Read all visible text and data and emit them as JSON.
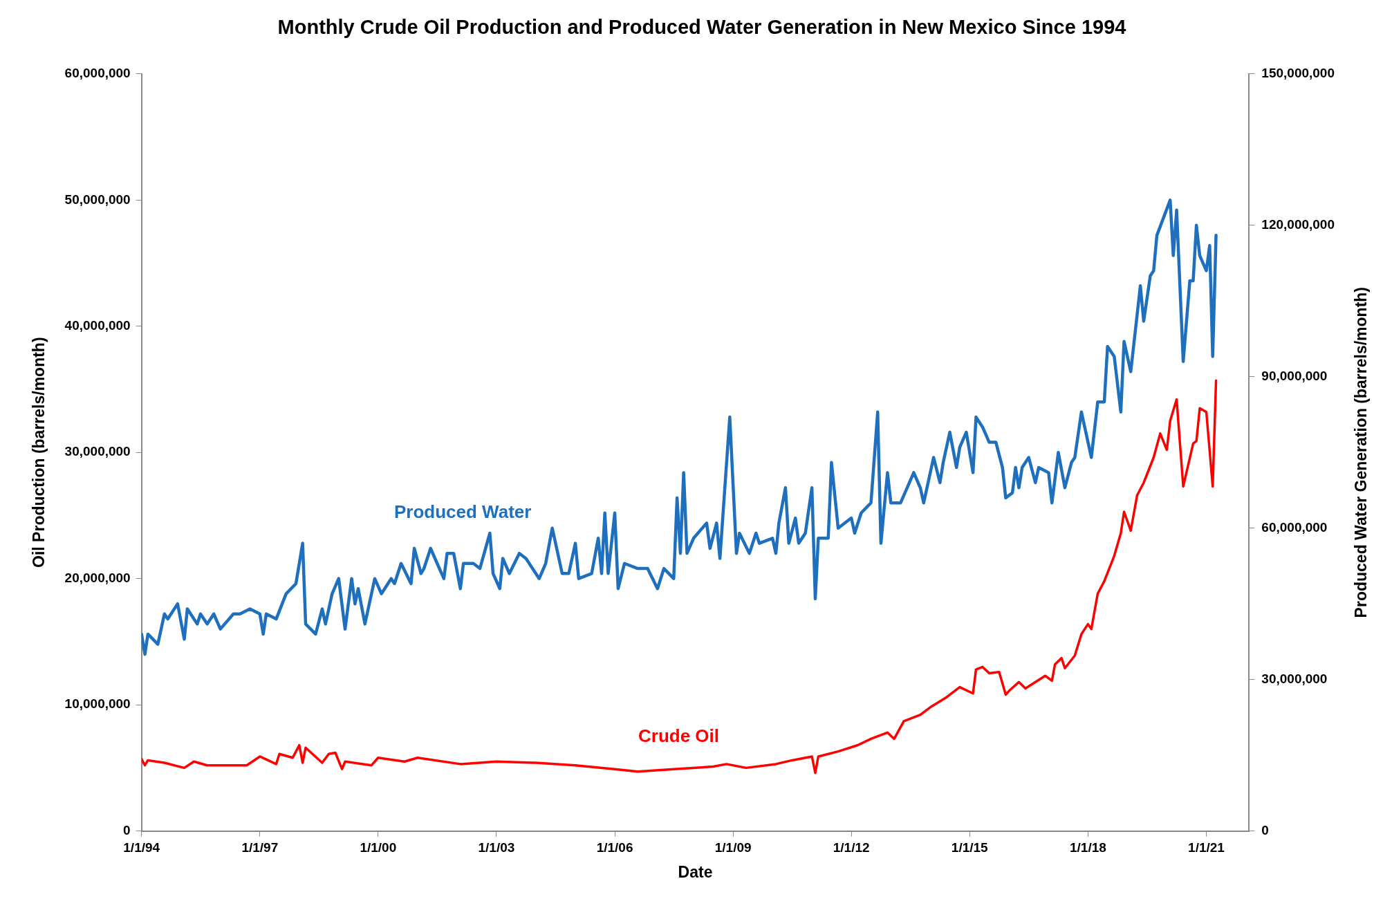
{
  "chart_data": {
    "type": "line",
    "title": "Monthly Crude Oil Production and Produced Water Generation in New Mexico Since 1994",
    "xlabel": "Date",
    "ylabel": "Oil Production (barrels/month)",
    "y2label": "Produced Water Generation (barrels/month)",
    "xlim": [
      "1994-01-01",
      "2022-02-01"
    ],
    "xticks": [
      {
        "value": "1994-01-01",
        "label": "1/1/94"
      },
      {
        "value": "1997-01-01",
        "label": "1/1/97"
      },
      {
        "value": "2000-01-01",
        "label": "1/1/00"
      },
      {
        "value": "2003-01-01",
        "label": "1/1/03"
      },
      {
        "value": "2006-01-01",
        "label": "1/1/06"
      },
      {
        "value": "2009-01-01",
        "label": "1/1/09"
      },
      {
        "value": "2012-01-01",
        "label": "1/1/12"
      },
      {
        "value": "2015-01-01",
        "label": "1/1/15"
      },
      {
        "value": "2018-01-01",
        "label": "1/1/18"
      },
      {
        "value": "2021-01-01",
        "label": "1/1/21"
      }
    ],
    "ylim": [
      0,
      60000000
    ],
    "yticks": [
      {
        "value": 0,
        "label": "0"
      },
      {
        "value": 10000000,
        "label": "10,000,000"
      },
      {
        "value": 20000000,
        "label": "20,000,000"
      },
      {
        "value": 30000000,
        "label": "30,000,000"
      },
      {
        "value": 40000000,
        "label": "40,000,000"
      },
      {
        "value": 50000000,
        "label": "50,000,000"
      },
      {
        "value": 60000000,
        "label": "60,000,000"
      }
    ],
    "y2lim": [
      0,
      150000000
    ],
    "y2ticks": [
      {
        "value": 0,
        "label": "0"
      },
      {
        "value": 30000000,
        "label": "30,000,000"
      },
      {
        "value": 60000000,
        "label": "60,000,000"
      },
      {
        "value": 90000000,
        "label": "90,000,000"
      },
      {
        "value": 120000000,
        "label": "120,000,000"
      },
      {
        "value": 150000000,
        "label": "150,000,000"
      }
    ],
    "grid": false,
    "legend": false,
    "marker": "none",
    "line_style": "solid",
    "series": [
      {
        "name": "Produced Water",
        "color": "#1f6fbf",
        "axis": "y2",
        "x": [
          "1994-01",
          "1994-02",
          "1994-03",
          "1994-06",
          "1994-08",
          "1994-09",
          "1994-12",
          "1995-02",
          "1995-03",
          "1995-06",
          "1995-07",
          "1995-09",
          "1995-11",
          "1996-01",
          "1996-05",
          "1996-07",
          "1996-10",
          "1997-01",
          "1997-02",
          "1997-03",
          "1997-06",
          "1997-09",
          "1997-12",
          "1998-02",
          "1998-03",
          "1998-06",
          "1998-08",
          "1998-09",
          "1998-11",
          "1999-01",
          "1999-03",
          "1999-05",
          "1999-06",
          "1999-07",
          "1999-09",
          "1999-12",
          "2000-02",
          "2000-05",
          "2000-06",
          "2000-08",
          "2000-11",
          "2000-12",
          "2001-02",
          "2001-03",
          "2001-05",
          "2001-07",
          "2001-09",
          "2001-10",
          "2001-12",
          "2002-02",
          "2002-03",
          "2002-06",
          "2002-08",
          "2002-11",
          "2002-12",
          "2003-02",
          "2003-03",
          "2003-05",
          "2003-08",
          "2003-10",
          "2004-02",
          "2004-04",
          "2004-06",
          "2004-09",
          "2004-11",
          "2005-01",
          "2005-02",
          "2005-06",
          "2005-08",
          "2005-09",
          "2005-10",
          "2005-11",
          "2006-01",
          "2006-02",
          "2006-04",
          "2006-08",
          "2006-11",
          "2007-02",
          "2007-04",
          "2007-07",
          "2007-08",
          "2007-09",
          "2007-10",
          "2007-11",
          "2008-01",
          "2008-05",
          "2008-06",
          "2008-08",
          "2008-09",
          "2008-12",
          "2009-02",
          "2009-03",
          "2009-06",
          "2009-08",
          "2009-09",
          "2010-01",
          "2010-02",
          "2010-03",
          "2010-05",
          "2010-06",
          "2010-08",
          "2010-09",
          "2010-11",
          "2011-01",
          "2011-02",
          "2011-03",
          "2011-06",
          "2011-07",
          "2011-09",
          "2012-01",
          "2012-02",
          "2012-04",
          "2012-07",
          "2012-09",
          "2012-10",
          "2012-12",
          "2013-01",
          "2013-04",
          "2013-06",
          "2013-08",
          "2013-10",
          "2013-11",
          "2014-02",
          "2014-04",
          "2014-05",
          "2014-07",
          "2014-09",
          "2014-10",
          "2014-12",
          "2015-02",
          "2015-03",
          "2015-05",
          "2015-07",
          "2015-09",
          "2015-11",
          "2015-12",
          "2016-02",
          "2016-03",
          "2016-04",
          "2016-05",
          "2016-07",
          "2016-09",
          "2016-10",
          "2017-01",
          "2017-02",
          "2017-04",
          "2017-06",
          "2017-08",
          "2017-09",
          "2017-11",
          "2018-02",
          "2018-04",
          "2018-06",
          "2018-07",
          "2018-09",
          "2018-11",
          "2018-12",
          "2019-02",
          "2019-05",
          "2019-06",
          "2019-08",
          "2019-09",
          "2019-10",
          "2020-02",
          "2020-03",
          "2020-04",
          "2020-06",
          "2020-08",
          "2020-09",
          "2020-10",
          "2020-11",
          "2021-01",
          "2021-02",
          "2021-03",
          "2021-04"
        ],
        "values": [
          39000000,
          35000000,
          39000000,
          37000000,
          43000000,
          42000000,
          45000000,
          38000000,
          44000000,
          41000000,
          43000000,
          41000000,
          43000000,
          40000000,
          43000000,
          43000000,
          44000000,
          43000000,
          39000000,
          43000000,
          42000000,
          47000000,
          49000000,
          57000000,
          41000000,
          39000000,
          44000000,
          41000000,
          47000000,
          50000000,
          40000000,
          50000000,
          45000000,
          48000000,
          41000000,
          50000000,
          47000000,
          50000000,
          49000000,
          53000000,
          49000000,
          56000000,
          51000000,
          52000000,
          56000000,
          53000000,
          50000000,
          55000000,
          55000000,
          48000000,
          53000000,
          53000000,
          52000000,
          59000000,
          51000000,
          48000000,
          54000000,
          51000000,
          55000000,
          54000000,
          50000000,
          53000000,
          60000000,
          51000000,
          51000000,
          57000000,
          50000000,
          51000000,
          58000000,
          51000000,
          63000000,
          51000000,
          63000000,
          48000000,
          53000000,
          52000000,
          52000000,
          48000000,
          52000000,
          50000000,
          66000000,
          55000000,
          71000000,
          55000000,
          58000000,
          61000000,
          56000000,
          61000000,
          54000000,
          82000000,
          55000000,
          59000000,
          55000000,
          59000000,
          57000000,
          58000000,
          55000000,
          61000000,
          68000000,
          57000000,
          62000000,
          57000000,
          59000000,
          68000000,
          46000000,
          58000000,
          58000000,
          73000000,
          60000000,
          62000000,
          59000000,
          63000000,
          65000000,
          83000000,
          57000000,
          71000000,
          65000000,
          65000000,
          68000000,
          71000000,
          68000000,
          65000000,
          74000000,
          69000000,
          73000000,
          79000000,
          72000000,
          76000000,
          79000000,
          71000000,
          82000000,
          80000000,
          77000000,
          77000000,
          72000000,
          66000000,
          67000000,
          72000000,
          68000000,
          72000000,
          74000000,
          69000000,
          72000000,
          71000000,
          65000000,
          75000000,
          68000000,
          73000000,
          74000000,
          83000000,
          74000000,
          85000000,
          85000000,
          96000000,
          94000000,
          83000000,
          97000000,
          91000000,
          108000000,
          101000000,
          110000000,
          111000000,
          118000000,
          125000000,
          114000000,
          123000000,
          93000000,
          109000000,
          109000000,
          120000000,
          114000000,
          111000000,
          116000000,
          94000000,
          118000000
        ]
      },
      {
        "name": "Crude Oil",
        "color": "#ff0000",
        "x": [
          "1994-01",
          "1994-02",
          "1994-03",
          "1994-08",
          "1995-02",
          "1995-05",
          "1995-09",
          "1996-01",
          "1996-06",
          "1996-09",
          "1997-01",
          "1997-06",
          "1997-07",
          "1997-11",
          "1998-01",
          "1998-02",
          "1998-03",
          "1998-08",
          "1998-10",
          "1998-12",
          "1999-02",
          "1999-03",
          "1999-11",
          "2000-01",
          "2000-09",
          "2001-01",
          "2002-02",
          "2003-01",
          "2004-01",
          "2005-01",
          "2006-01",
          "2006-08",
          "2007-07",
          "2008-07",
          "2008-11",
          "2009-05",
          "2010-02",
          "2010-07",
          "2011-01",
          "2011-02",
          "2011-03",
          "2011-09",
          "2012-03",
          "2012-07",
          "2012-12",
          "2013-02",
          "2013-05",
          "2013-10",
          "2014-01",
          "2014-06",
          "2014-10",
          "2015-02",
          "2015-03",
          "2015-05",
          "2015-07",
          "2015-10",
          "2015-12",
          "2016-01",
          "2016-04",
          "2016-06",
          "2016-09",
          "2016-12",
          "2017-02",
          "2017-03",
          "2017-05",
          "2017-06",
          "2017-09",
          "2017-11",
          "2018-01",
          "2018-02",
          "2018-04",
          "2018-06",
          "2018-09",
          "2018-11",
          "2018-12",
          "2019-02",
          "2019-04",
          "2019-06",
          "2019-09",
          "2019-11",
          "2020-01",
          "2020-02",
          "2020-04",
          "2020-06",
          "2020-09",
          "2020-10",
          "2020-11",
          "2021-01",
          "2021-03",
          "2021-04"
        ],
        "values": [
          5700000,
          5200000,
          5600000,
          5400000,
          5000000,
          5500000,
          5200000,
          5200000,
          5200000,
          5200000,
          5900000,
          5300000,
          6100000,
          5800000,
          6800000,
          5400000,
          6600000,
          5400000,
          6100000,
          6200000,
          4900000,
          5500000,
          5200000,
          5800000,
          5500000,
          5800000,
          5300000,
          5500000,
          5400000,
          5200000,
          4900000,
          4700000,
          4900000,
          5100000,
          5300000,
          5000000,
          5300000,
          5600000,
          5900000,
          4600000,
          5900000,
          6300000,
          6800000,
          7300000,
          7800000,
          7300000,
          8700000,
          9200000,
          9800000,
          10600000,
          11400000,
          10900000,
          12800000,
          13000000,
          12500000,
          12600000,
          10800000,
          11100000,
          11800000,
          11300000,
          11800000,
          12300000,
          11900000,
          13200000,
          13700000,
          12900000,
          13900000,
          15600000,
          16400000,
          16000000,
          18800000,
          19800000,
          21800000,
          23600000,
          25300000,
          23800000,
          26600000,
          27600000,
          29600000,
          31500000,
          30200000,
          32500000,
          34200000,
          27300000,
          30700000,
          30900000,
          33500000,
          33200000,
          27300000,
          35700000
        ]
      }
    ]
  }
}
